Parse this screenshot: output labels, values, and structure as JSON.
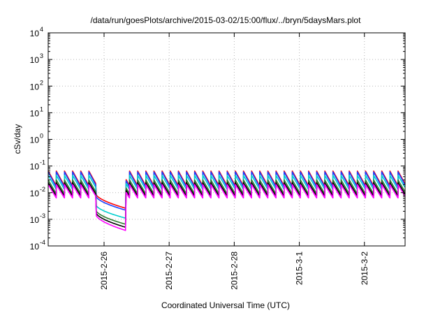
{
  "chart_data": {
    "type": "line",
    "title": "/data/run/goesPlots/archive/2015-03-02/15:00/flux/../bryn/5daysMars.plot",
    "xlabel": "Coordinated Universal Time (UTC)",
    "ylabel": "cSv/day",
    "yscale": "log",
    "ylim": [
      0.0001,
      10000
    ],
    "xlim": [
      "2015-02-25T03:24",
      "2015-03-02T15:00"
    ],
    "y_ticks": [
      {
        "base": "10",
        "exp": "-4"
      },
      {
        "base": "10",
        "exp": "-3"
      },
      {
        "base": "10",
        "exp": "-2"
      },
      {
        "base": "10",
        "exp": "-1"
      },
      {
        "base": "10",
        "exp": "0"
      },
      {
        "base": "10",
        "exp": "1"
      },
      {
        "base": "10",
        "exp": "2"
      },
      {
        "base": "10",
        "exp": "3"
      },
      {
        "base": "10",
        "exp": "4"
      }
    ],
    "x_ticks": [
      "2015-2-26",
      "2015-2-27",
      "2015-2-28",
      "2015-3-1",
      "2015-3-2"
    ],
    "grid": true,
    "legend": "none",
    "sawtooth_period_hours": 3,
    "series": [
      {
        "color": "#ff0000",
        "peak": 0.065,
        "trough": 0.018,
        "gap_start": 0.009,
        "gap_end": 0.0026
      },
      {
        "color": "#1a3fff",
        "peak": 0.06,
        "trough": 0.016,
        "gap_start": 0.0075,
        "gap_end": 0.0022
      },
      {
        "color": "#00cfcf",
        "peak": 0.045,
        "trough": 0.013,
        "gap_start": 0.0035,
        "gap_end": 0.0011
      },
      {
        "color": "#2e7d32",
        "peak": 0.03,
        "trough": 0.009,
        "gap_start": 0.0022,
        "gap_end": 0.00065
      },
      {
        "color": "#000000",
        "peak": 0.024,
        "trough": 0.0075,
        "gap_start": 0.0018,
        "gap_end": 0.0005
      },
      {
        "color": "#ff00ff",
        "peak": 0.02,
        "trough": 0.0062,
        "gap_start": 0.0015,
        "gap_end": 0.00038
      }
    ],
    "low_segment": {
      "start": "2015-02-25T21:00",
      "end": "2015-02-26T08:00"
    }
  }
}
